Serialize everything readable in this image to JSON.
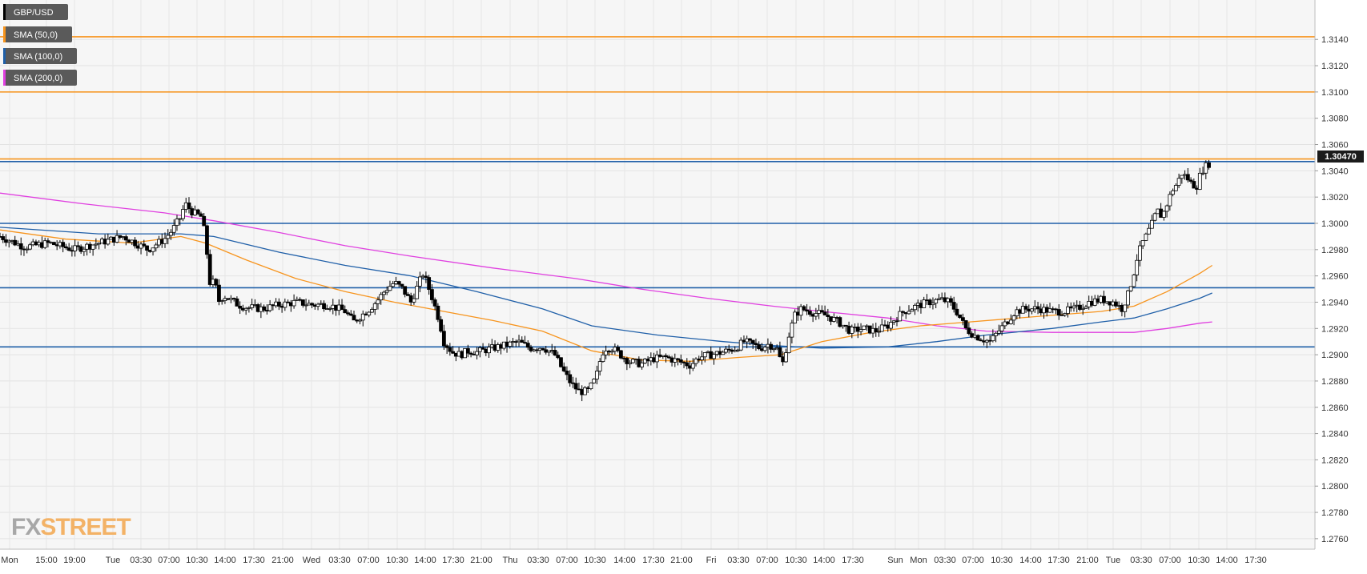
{
  "chart_data": {
    "type": "candlestick",
    "symbol": "GBP/USD",
    "legend": [
      {
        "label": "GBP/USD",
        "color": "#000000"
      },
      {
        "label": "SMA (50,0)",
        "color": "#f7941d"
      },
      {
        "label": "SMA (100,0)",
        "color": "#1f5fa8"
      },
      {
        "label": "SMA (200,0)",
        "color": "#e040e0"
      }
    ],
    "current_price": "1.30470",
    "ylim": [
      1.2752,
      1.317
    ],
    "y_ticks": [
      "1.3140",
      "1.3120",
      "1.3100",
      "1.3080",
      "1.3060",
      "1.3040",
      "1.3020",
      "1.3000",
      "1.2980",
      "1.2960",
      "1.2940",
      "1.2920",
      "1.2900",
      "1.2880",
      "1.2860",
      "1.2840",
      "1.2820",
      "1.2800",
      "1.2780",
      "1.2760"
    ],
    "x_ticks": [
      "Mon",
      "15:00",
      "19:00",
      "Tue",
      "03:30",
      "07:00",
      "10:30",
      "14:00",
      "17:30",
      "21:00",
      "Wed",
      "03:30",
      "07:00",
      "10:30",
      "14:00",
      "17:30",
      "21:00",
      "Thu",
      "03:30",
      "07:00",
      "10:30",
      "14:00",
      "17:30",
      "21:00",
      "Fri",
      "03:30",
      "07:00",
      "10:30",
      "14:00",
      "17:30",
      "Sun",
      "Mon",
      "03:30",
      "07:00",
      "10:30",
      "14:00",
      "17:30",
      "21:00",
      "Tue",
      "03:30",
      "07:00",
      "10:30",
      "14:00",
      "17:30"
    ],
    "grid": true,
    "horizontal_levels": [
      {
        "value": 1.3142,
        "color": "#f7941d"
      },
      {
        "value": 1.31,
        "color": "#f7941d"
      },
      {
        "value": 1.3049,
        "color": "#f7941d"
      },
      {
        "value": 1.3047,
        "color": "#1f5fa8"
      },
      {
        "value": 1.3,
        "color": "#1f5fa8"
      },
      {
        "value": 1.2951,
        "color": "#1f5fa8"
      },
      {
        "value": 1.2906,
        "color": "#1f5fa8"
      }
    ],
    "price_path": [
      [
        0,
        1.299
      ],
      [
        0.03,
        1.2982
      ],
      [
        0.06,
        1.2985
      ],
      [
        0.09,
        1.298
      ],
      [
        0.12,
        1.2985
      ],
      [
        0.15,
        1.299
      ],
      [
        0.18,
        1.298
      ],
      [
        0.2,
        1.2988
      ],
      [
        0.21,
        1.2995
      ],
      [
        0.22,
        1.3005
      ],
      [
        0.225,
        1.3015
      ],
      [
        0.235,
        1.3008
      ],
      [
        0.245,
        1.3005
      ],
      [
        0.25,
        1.299
      ],
      [
        0.255,
        1.2955
      ],
      [
        0.262,
        1.2955
      ],
      [
        0.265,
        1.294
      ],
      [
        0.272,
        1.2945
      ],
      [
        0.28,
        1.2942
      ],
      [
        0.29,
        1.2938
      ],
      [
        0.3,
        1.2936
      ],
      [
        0.32,
        1.2935
      ],
      [
        0.34,
        1.2938
      ],
      [
        0.36,
        1.294
      ],
      [
        0.38,
        1.2938
      ],
      [
        0.4,
        1.2938
      ],
      [
        0.42,
        1.2933
      ],
      [
        0.43,
        1.2925
      ],
      [
        0.44,
        1.293
      ],
      [
        0.45,
        1.2935
      ],
      [
        0.46,
        1.2942
      ],
      [
        0.47,
        1.295
      ],
      [
        0.48,
        1.2955
      ],
      [
        0.49,
        1.295
      ],
      [
        0.5,
        1.294
      ],
      [
        0.51,
        1.2955
      ],
      [
        0.515,
        1.2962
      ],
      [
        0.525,
        1.2945
      ],
      [
        0.53,
        1.2935
      ],
      [
        0.535,
        1.2925
      ],
      [
        0.54,
        1.291
      ],
      [
        0.55,
        1.2902
      ],
      [
        0.56,
        1.29
      ],
      [
        0.57,
        1.2903
      ],
      [
        0.58,
        1.2902
      ],
      [
        0.6,
        1.2905
      ],
      [
        0.62,
        1.2908
      ],
      [
        0.63,
        1.291
      ],
      [
        0.645,
        1.2905
      ],
      [
        0.66,
        1.2906
      ],
      [
        0.675,
        1.29
      ],
      [
        0.685,
        1.2888
      ],
      [
        0.695,
        1.2878
      ],
      [
        0.705,
        1.2872
      ],
      [
        0.715,
        1.2872
      ],
      [
        0.725,
        1.2882
      ],
      [
        0.73,
        1.2895
      ],
      [
        0.735,
        1.2905
      ],
      [
        0.745,
        1.2905
      ],
      [
        0.755,
        1.29
      ],
      [
        0.765,
        1.2895
      ],
      [
        0.78,
        1.2893
      ],
      [
        0.795,
        1.2897
      ],
      [
        0.81,
        1.2898
      ],
      [
        0.825,
        1.2895
      ],
      [
        0.84,
        1.2892
      ],
      [
        0.85,
        1.2898
      ],
      [
        0.865,
        1.29
      ],
      [
        0.88,
        1.2902
      ],
      [
        0.895,
        1.2905
      ],
      [
        0.905,
        1.291
      ],
      [
        0.915,
        1.2908
      ],
      [
        0.925,
        1.2905
      ],
      [
        0.935,
        1.2908
      ],
      [
        0.945,
        1.2905
      ],
      [
        0.952,
        1.2892
      ],
      [
        0.96,
        1.2915
      ],
      [
        0.967,
        1.293
      ],
      [
        0.975,
        1.2935
      ],
      [
        0.99,
        1.2932
      ],
      [
        1.005,
        1.293
      ],
      [
        1.02,
        1.2925
      ],
      [
        1.035,
        1.2918
      ],
      [
        1.05,
        1.292
      ],
      [
        1.065,
        1.2918
      ],
      [
        1.08,
        1.2922
      ],
      [
        1.09,
        1.2928
      ],
      [
        1.1,
        1.2933
      ],
      [
        1.115,
        1.2937
      ],
      [
        1.13,
        1.294
      ],
      [
        1.145,
        1.2942
      ],
      [
        1.155,
        1.294
      ],
      [
        1.165,
        1.2932
      ],
      [
        1.175,
        1.292
      ],
      [
        1.185,
        1.2915
      ],
      [
        1.195,
        1.2912
      ],
      [
        1.205,
        1.291
      ],
      [
        1.215,
        1.2918
      ],
      [
        1.225,
        1.2925
      ],
      [
        1.235,
        1.2933
      ],
      [
        1.25,
        1.2935
      ],
      [
        1.265,
        1.2935
      ],
      [
        1.28,
        1.2933
      ],
      [
        1.295,
        1.2933
      ],
      [
        1.31,
        1.2935
      ],
      [
        1.325,
        1.294
      ],
      [
        1.34,
        1.2942
      ],
      [
        1.355,
        1.294
      ],
      [
        1.365,
        1.2935
      ],
      [
        1.372,
        1.2945
      ],
      [
        1.378,
        1.2958
      ],
      [
        1.384,
        1.2975
      ],
      [
        1.39,
        1.2985
      ],
      [
        1.396,
        1.2992
      ],
      [
        1.402,
        1.3
      ],
      [
        1.408,
        1.301
      ],
      [
        1.414,
        1.3005
      ],
      [
        1.42,
        1.3015
      ],
      [
        1.426,
        1.3025
      ],
      [
        1.432,
        1.303
      ],
      [
        1.438,
        1.3038
      ],
      [
        1.444,
        1.3035
      ],
      [
        1.45,
        1.303
      ],
      [
        1.456,
        1.3028
      ],
      [
        1.462,
        1.304
      ],
      [
        1.468,
        1.3044
      ],
      [
        1.474,
        1.3047
      ]
    ],
    "sma50": [
      [
        0,
        1.2995
      ],
      [
        0.08,
        1.2988
      ],
      [
        0.16,
        1.2985
      ],
      [
        0.22,
        1.299
      ],
      [
        0.25,
        1.2985
      ],
      [
        0.3,
        1.2972
      ],
      [
        0.36,
        1.2958
      ],
      [
        0.42,
        1.2948
      ],
      [
        0.48,
        1.294
      ],
      [
        0.54,
        1.2933
      ],
      [
        0.6,
        1.2926
      ],
      [
        0.66,
        1.2918
      ],
      [
        0.72,
        1.2903
      ],
      [
        0.78,
        1.2896
      ],
      [
        0.84,
        1.2895
      ],
      [
        0.9,
        1.2898
      ],
      [
        0.95,
        1.29
      ],
      [
        1.0,
        1.291
      ],
      [
        1.06,
        1.2917
      ],
      [
        1.12,
        1.2922
      ],
      [
        1.18,
        1.2925
      ],
      [
        1.22,
        1.2927
      ],
      [
        1.28,
        1.293
      ],
      [
        1.34,
        1.2933
      ],
      [
        1.38,
        1.2937
      ],
      [
        1.42,
        1.2948
      ],
      [
        1.46,
        1.2962
      ],
      [
        1.475,
        1.2968
      ]
    ],
    "sma100": [
      [
        0,
        1.2997
      ],
      [
        0.12,
        1.2992
      ],
      [
        0.22,
        1.2992
      ],
      [
        0.26,
        1.299
      ],
      [
        0.34,
        1.2978
      ],
      [
        0.42,
        1.2968
      ],
      [
        0.5,
        1.296
      ],
      [
        0.58,
        1.2948
      ],
      [
        0.66,
        1.2935
      ],
      [
        0.72,
        1.2922
      ],
      [
        0.8,
        1.2915
      ],
      [
        0.88,
        1.291
      ],
      [
        0.94,
        1.2907
      ],
      [
        1.0,
        1.2905
      ],
      [
        1.08,
        1.2906
      ],
      [
        1.14,
        1.291
      ],
      [
        1.2,
        1.2915
      ],
      [
        1.28,
        1.292
      ],
      [
        1.34,
        1.2925
      ],
      [
        1.38,
        1.2928
      ],
      [
        1.42,
        1.2935
      ],
      [
        1.46,
        1.2943
      ],
      [
        1.475,
        1.2947
      ]
    ],
    "sma200": [
      [
        0,
        1.3023
      ],
      [
        0.1,
        1.3015
      ],
      [
        0.2,
        1.3008
      ],
      [
        0.26,
        1.3002
      ],
      [
        0.34,
        1.2993
      ],
      [
        0.42,
        1.2983
      ],
      [
        0.5,
        1.2975
      ],
      [
        0.6,
        1.2966
      ],
      [
        0.7,
        1.2958
      ],
      [
        0.78,
        1.295
      ],
      [
        0.86,
        1.2943
      ],
      [
        0.94,
        1.2937
      ],
      [
        1.0,
        1.2933
      ],
      [
        1.08,
        1.2928
      ],
      [
        1.14,
        1.2922
      ],
      [
        1.2,
        1.2918
      ],
      [
        1.28,
        1.2917
      ],
      [
        1.34,
        1.2917
      ],
      [
        1.38,
        1.2917
      ],
      [
        1.42,
        1.292
      ],
      [
        1.46,
        1.2924
      ],
      [
        1.475,
        1.2925
      ]
    ]
  },
  "watermark": {
    "part1": "FX",
    "part2": "STREET"
  }
}
